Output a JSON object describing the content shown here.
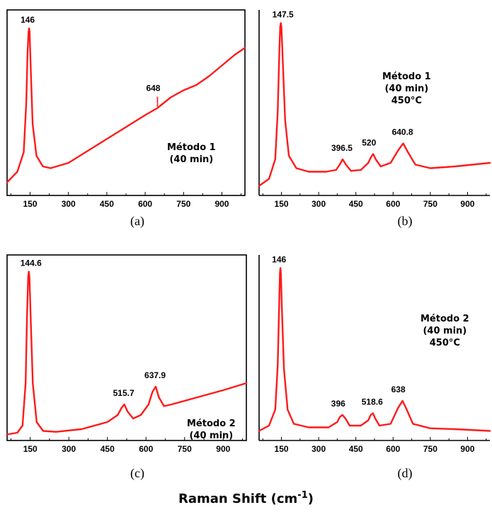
{
  "figure": {
    "xtitle": "Raman Shift (cm",
    "xtitle_sup": "-1",
    "xtitle_close": ")"
  },
  "chart_data": [
    {
      "type": "line",
      "panel": "a",
      "caption": "(a)",
      "annotation": [
        "Método 1",
        "(40 min)"
      ],
      "xticks": [
        "150",
        "300",
        "450",
        "600",
        "750",
        "900"
      ],
      "xlim": [
        60,
        990
      ],
      "ylim": [
        0,
        100
      ],
      "color": "#ff1a1a",
      "peak_labels": [
        {
          "x": 146,
          "text": "146"
        },
        {
          "x": 648,
          "text": "648"
        }
      ],
      "series": [
        {
          "x": [
            60,
            100,
            125,
            135,
            140,
            144,
            146,
            148,
            152,
            160,
            175,
            200,
            230,
            300,
            400,
            500,
            600,
            648,
            700,
            750,
            800,
            850,
            900,
            950,
            990
          ],
          "y": [
            5,
            11,
            22,
            50,
            78,
            90,
            92,
            90,
            72,
            38,
            20,
            14,
            13,
            16,
            25,
            34,
            43,
            47,
            53,
            57,
            60,
            65,
            71,
            77,
            81
          ]
        }
      ]
    },
    {
      "type": "line",
      "panel": "b",
      "caption": "(b)",
      "annotation": [
        "Método 1",
        "(40 min)",
        "450°C"
      ],
      "xticks": [
        "150",
        "300",
        "450",
        "600",
        "750",
        "900"
      ],
      "xlim": [
        60,
        990
      ],
      "ylim": [
        0,
        100
      ],
      "color": "#ff1a1a",
      "peak_labels": [
        {
          "x": 147.5,
          "text": "147.5"
        },
        {
          "x": 396.5,
          "text": "396.5"
        },
        {
          "x": 520,
          "text": "520"
        },
        {
          "x": 640.8,
          "text": "640.8"
        }
      ],
      "series": [
        {
          "x": [
            60,
            100,
            125,
            135,
            142,
            145,
            147.5,
            150,
            155,
            165,
            180,
            210,
            260,
            330,
            370,
            385,
            396.5,
            410,
            430,
            470,
            500,
            512,
            520,
            530,
            550,
            590,
            620,
            640.8,
            660,
            690,
            750,
            850,
            990
          ],
          "y": [
            3,
            7,
            18,
            45,
            80,
            93,
            95,
            93,
            75,
            40,
            20,
            13,
            11,
            11,
            12,
            15,
            18,
            15,
            11.5,
            12,
            16,
            19.5,
            21,
            18,
            14,
            16,
            23,
            27,
            22,
            15,
            13,
            14,
            16
          ]
        }
      ]
    },
    {
      "type": "line",
      "panel": "c",
      "caption": "(c)",
      "annotation": [
        "Método 2",
        "(40 min)"
      ],
      "xticks": [
        "150",
        "300",
        "450",
        "600",
        "750",
        "900"
      ],
      "xlim": [
        60,
        990
      ],
      "ylim": [
        0,
        100
      ],
      "color": "#ff1a1a",
      "peak_labels": [
        {
          "x": 144.6,
          "text": "144.6"
        },
        {
          "x": 515.7,
          "text": "515.7"
        },
        {
          "x": 637.9,
          "text": "637.9"
        }
      ],
      "series": [
        {
          "x": [
            60,
            100,
            120,
            132,
            138,
            142,
            144.6,
            147,
            151,
            160,
            175,
            200,
            250,
            350,
            450,
            490,
            505,
            515.7,
            528,
            550,
            580,
            610,
            625,
            637.9,
            650,
            670,
            700,
            800,
            900,
            990
          ],
          "y": [
            1,
            2,
            6,
            30,
            70,
            90,
            93,
            90,
            70,
            30,
            8,
            3,
            2.5,
            4,
            8,
            12,
            16,
            18,
            14,
            10,
            12,
            18,
            25,
            28,
            22,
            17,
            18,
            22,
            26,
            30
          ]
        }
      ]
    },
    {
      "type": "line",
      "panel": "d",
      "caption": "(d)",
      "annotation": [
        "Método 2",
        "(40 min)",
        "450°C"
      ],
      "xticks": [
        "150",
        "300",
        "450",
        "600",
        "750",
        "900"
      ],
      "xlim": [
        60,
        990
      ],
      "ylim": [
        0,
        100
      ],
      "color": "#ff1a1a",
      "peak_labels": [
        {
          "x": 146,
          "text": "146"
        },
        {
          "x": 396,
          "text": "396"
        },
        {
          "x": 518.6,
          "text": "518.6"
        },
        {
          "x": 638,
          "text": "638"
        }
      ],
      "series": [
        {
          "x": [
            60,
            100,
            125,
            135,
            141,
            144,
            146,
            148,
            152,
            160,
            175,
            200,
            260,
            340,
            375,
            386,
            396,
            408,
            425,
            470,
            500,
            510,
            518.6,
            528,
            545,
            590,
            620,
            638,
            655,
            680,
            750,
            850,
            990
          ],
          "y": [
            3,
            6,
            15,
            40,
            75,
            92,
            95,
            92,
            72,
            38,
            15,
            7,
            5,
            5,
            8,
            11,
            12,
            10,
            6,
            6,
            9,
            12,
            13,
            10,
            6,
            7,
            16,
            20,
            15,
            7,
            4.5,
            4,
            3
          ]
        }
      ]
    }
  ]
}
